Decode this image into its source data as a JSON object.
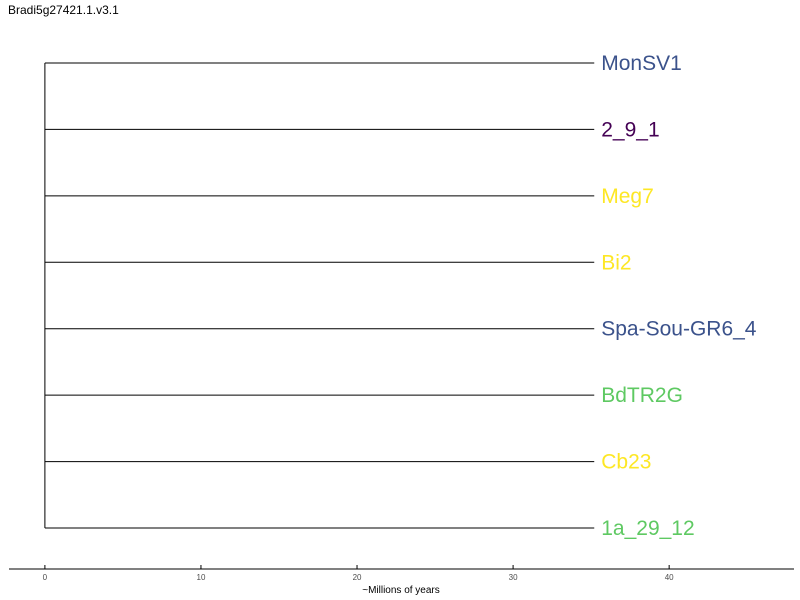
{
  "chart_data": {
    "type": "tree",
    "title": "Bradi5g27421.1.v3.1",
    "xlabel": "~Millions of years",
    "xlim": [
      -2.3,
      48
    ],
    "xticks": [
      0,
      10,
      20,
      30,
      40
    ],
    "root_x": 0,
    "tips": [
      {
        "label": "MonSV1",
        "x": 35.2,
        "color": "#3b528b"
      },
      {
        "label": "2_9_1",
        "x": 35.2,
        "color": "#440154"
      },
      {
        "label": "Meg7",
        "x": 35.2,
        "color": "#fde725"
      },
      {
        "label": "Bi2",
        "x": 35.2,
        "color": "#fde725"
      },
      {
        "label": "Spa-Sou-GR6_4",
        "x": 35.2,
        "color": "#3b528b"
      },
      {
        "label": "BdTR2G",
        "x": 35.2,
        "color": "#5ec962"
      },
      {
        "label": "Cb23",
        "x": 35.2,
        "color": "#fde725"
      },
      {
        "label": "1a_29_12",
        "x": 35.2,
        "color": "#5ec962"
      }
    ],
    "grid": false
  }
}
